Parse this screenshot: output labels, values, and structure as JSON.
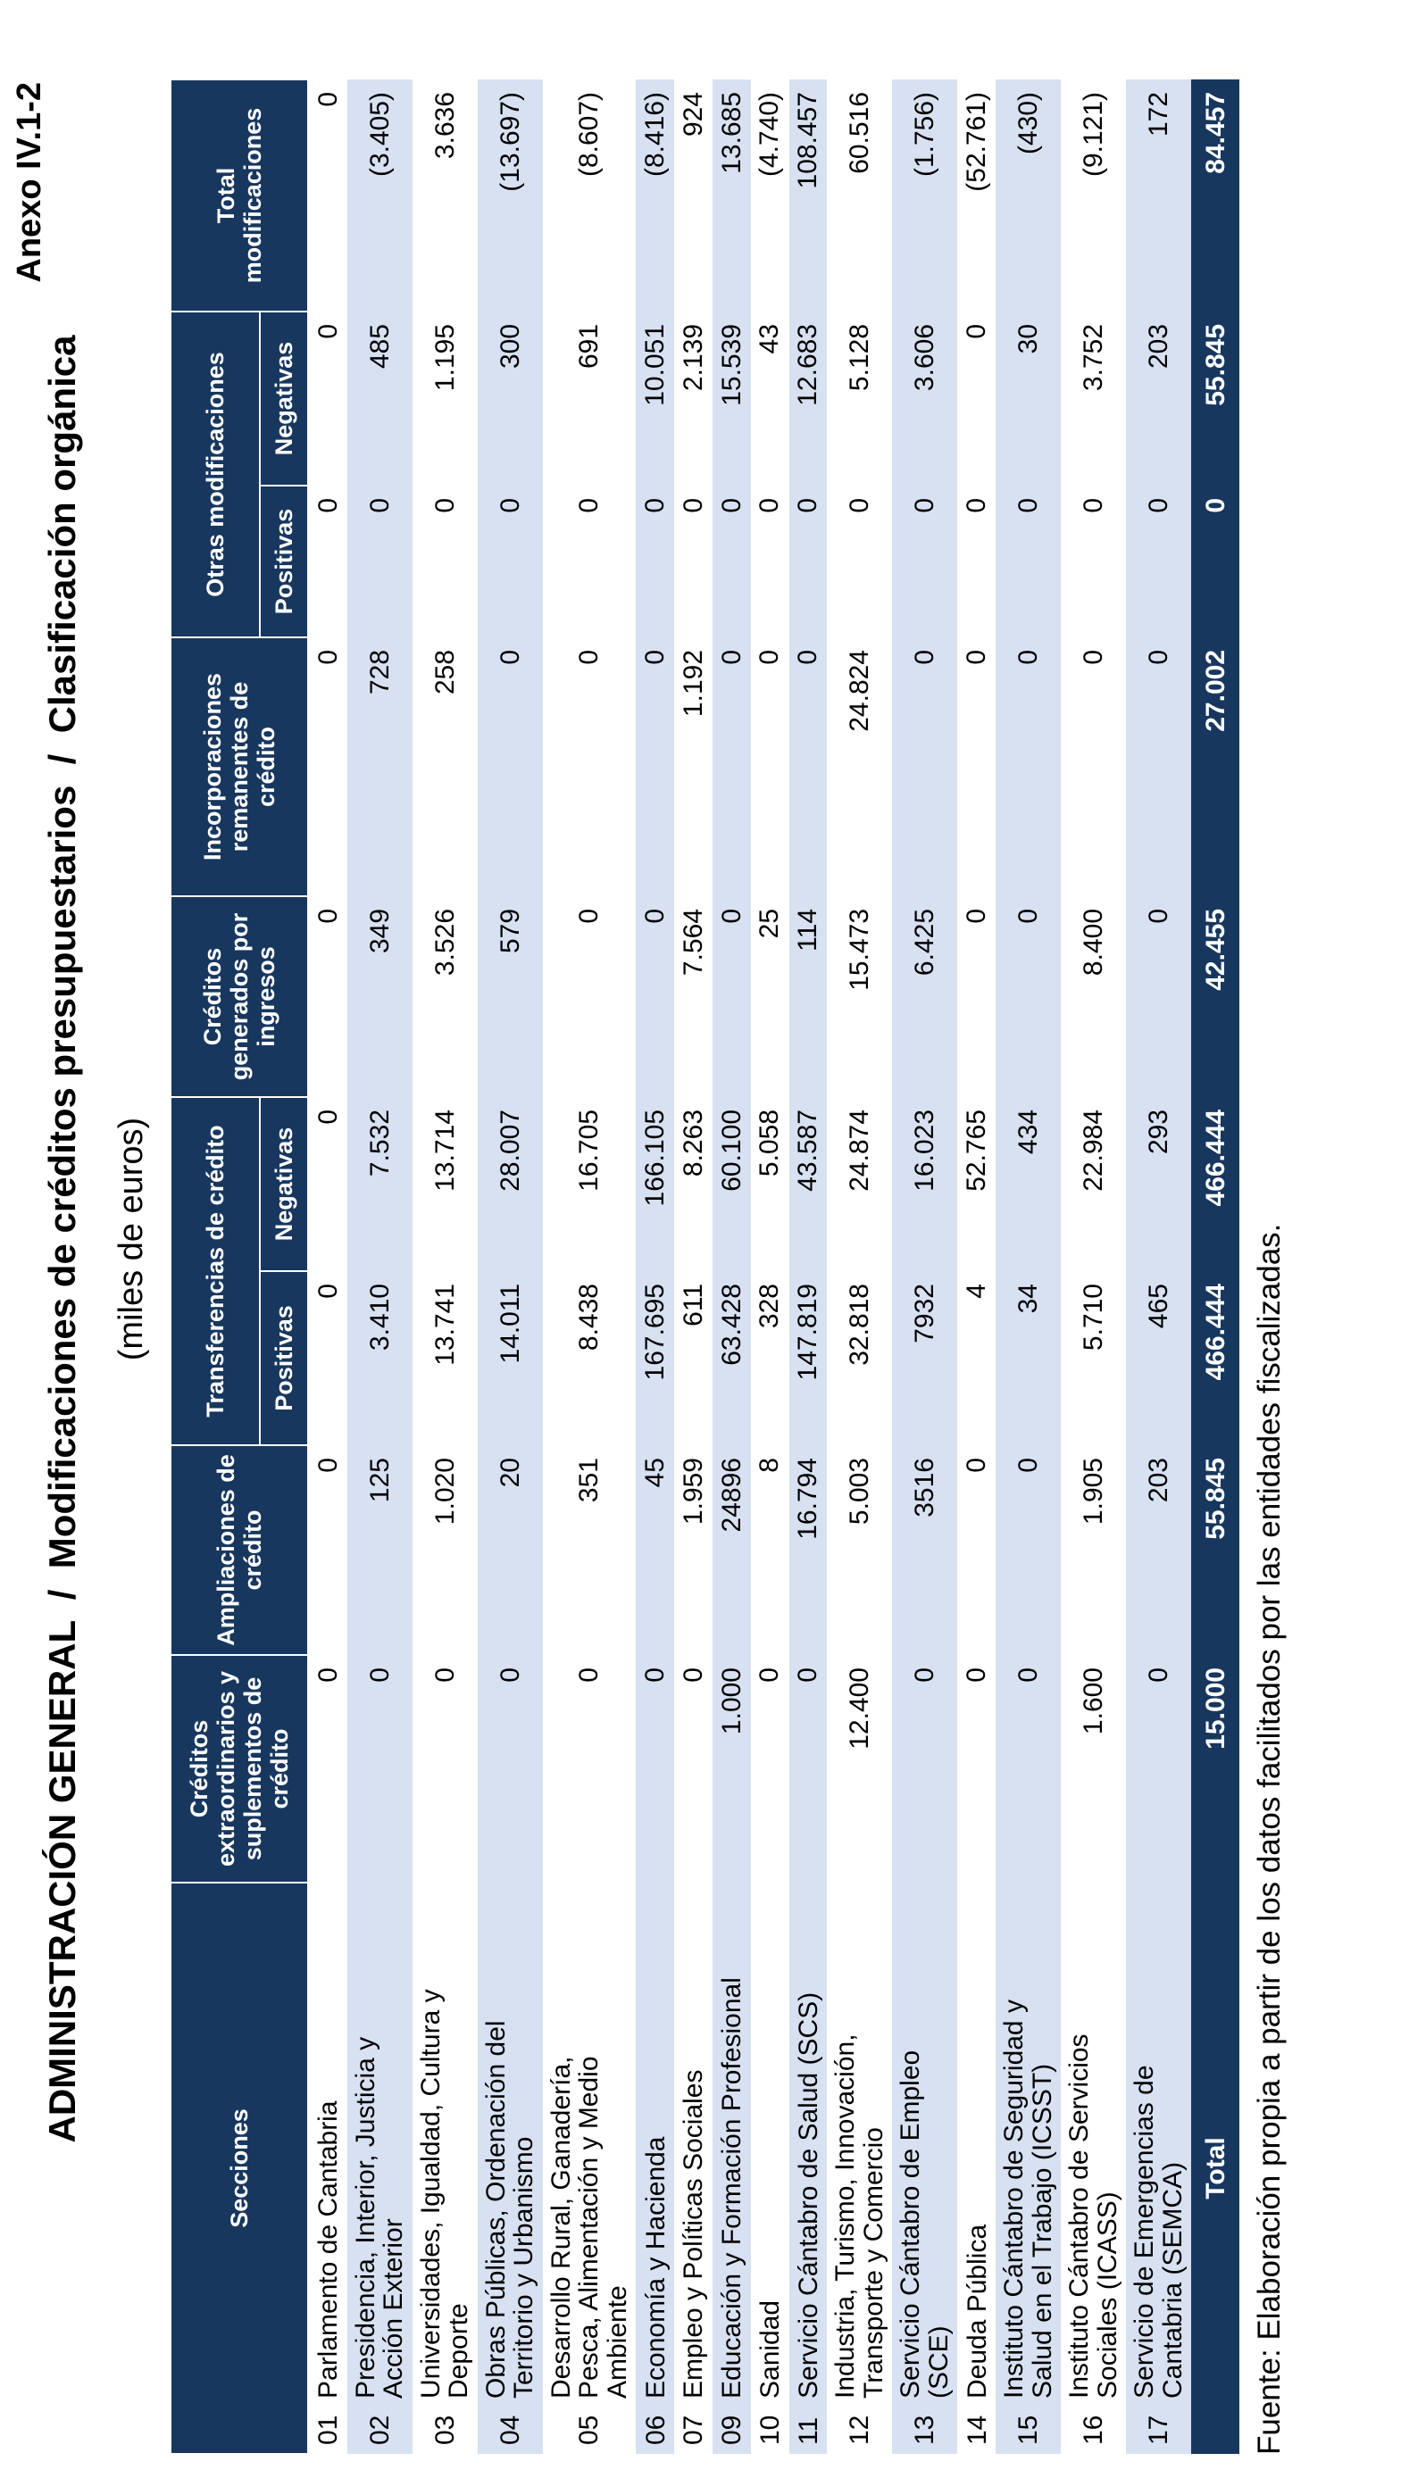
{
  "page": {
    "annex": "Anexo IV.1-2",
    "title": "ADMINISTRACIÓN GENERAL  /  Modificaciones de créditos presupuestarios  /  Clasificación orgánica",
    "subtitle": "(miles de euros)",
    "source_note": "Fuente: Elaboración propia a partir de los datos facilitados por las entidades fiscalizadas."
  },
  "colors": {
    "header_navy": "#17375E",
    "row_stripe": "#D8E1F1",
    "text": "#000000"
  },
  "table": {
    "col_headers": {
      "secciones": "Secciones",
      "extraordinarios": "Créditos extraordinarios y suplementos de crédito",
      "ampliaciones": "Ampliaciones de crédito",
      "transferencias": "Transferencias de crédito",
      "generados": "Créditos generados por ingresos",
      "incorporaciones": "Incorporaciones remanentes de crédito",
      "otras": "Otras modificaciones",
      "total": "Total modificaciones",
      "sub_positivas": "Positivas",
      "sub_negativas": "Negativas"
    },
    "rows": [
      {
        "num": "01",
        "name": "Parlamento de Cantabria",
        "shaded": false,
        "values": [
          "0",
          "0",
          "0",
          "0",
          "0",
          "0",
          "0",
          "0",
          "0"
        ]
      },
      {
        "num": "02",
        "name": "Presidencia, Interior, Justicia y Acción Exterior",
        "shaded": true,
        "values": [
          "0",
          "125",
          "3.410",
          "7.532",
          "349",
          "728",
          "0",
          "485",
          "(3.405)"
        ]
      },
      {
        "num": "03",
        "name": "Universidades, Igualdad, Cultura y Deporte",
        "shaded": false,
        "values": [
          "0",
          "1.020",
          "13.741",
          "13.714",
          "3.526",
          "258",
          "0",
          "1.195",
          "3.636"
        ]
      },
      {
        "num": "04",
        "name": "Obras Públicas, Ordenación del Territorio y Urbanismo",
        "shaded": true,
        "values": [
          "0",
          "20",
          "14.011",
          "28.007",
          "579",
          "0",
          "0",
          "300",
          "(13.697)"
        ]
      },
      {
        "num": "05",
        "name": "Desarrollo Rural, Ganadería, Pesca, Alimentación y Medio Ambiente",
        "shaded": false,
        "values": [
          "0",
          "351",
          "8.438",
          "16.705",
          "0",
          "0",
          "0",
          "691",
          "(8.607)"
        ]
      },
      {
        "num": "06",
        "name": "Economía y Hacienda",
        "shaded": true,
        "values": [
          "0",
          "45",
          "167.695",
          "166.105",
          "0",
          "0",
          "0",
          "10.051",
          "(8.416)"
        ]
      },
      {
        "num": "07",
        "name": "Empleo y Políticas Sociales",
        "shaded": false,
        "values": [
          "0",
          "1.959",
          "611",
          "8.263",
          "7.564",
          "1.192",
          "0",
          "2.139",
          "924"
        ]
      },
      {
        "num": "09",
        "name": "Educación y Formación Profesional",
        "shaded": true,
        "values": [
          "1.000",
          "24896",
          "63.428",
          "60.100",
          "0",
          "0",
          "0",
          "15.539",
          "13.685"
        ]
      },
      {
        "num": "10",
        "name": "Sanidad",
        "shaded": false,
        "values": [
          "0",
          "8",
          "328",
          "5.058",
          "25",
          "0",
          "0",
          "43",
          "(4.740)"
        ]
      },
      {
        "num": "11",
        "name": "Servicio Cántabro de Salud (SCS)",
        "shaded": true,
        "values": [
          "0",
          "16.794",
          "147.819",
          "43.587",
          "114",
          "0",
          "0",
          "12.683",
          "108.457"
        ]
      },
      {
        "num": "12",
        "name": "Industria, Turismo, Innovación, Transporte y Comercio",
        "shaded": false,
        "values": [
          "12.400",
          "5.003",
          "32.818",
          "24.874",
          "15.473",
          "24.824",
          "0",
          "5.128",
          "60.516"
        ]
      },
      {
        "num": "13",
        "name": "Servicio Cántabro de Empleo (SCE)",
        "shaded": true,
        "values": [
          "0",
          "3516",
          "7932",
          "16.023",
          "6.425",
          "0",
          "0",
          "3.606",
          "(1.756)"
        ]
      },
      {
        "num": "14",
        "name": "Deuda Pública",
        "shaded": false,
        "values": [
          "0",
          "0",
          "4",
          "52.765",
          "0",
          "0",
          "0",
          "0",
          "(52.761)"
        ]
      },
      {
        "num": "15",
        "name": "Instituto Cántabro de Seguridad y Salud en el Trabajo (ICSST)",
        "shaded": true,
        "values": [
          "0",
          "0",
          "34",
          "434",
          "0",
          "0",
          "0",
          "30",
          "(430)"
        ]
      },
      {
        "num": "16",
        "name": "Instituto Cántabro de Servicios Sociales (ICASS)",
        "shaded": false,
        "values": [
          "1.600",
          "1.905",
          "5.710",
          "22.984",
          "8.400",
          "0",
          "0",
          "3.752",
          "(9.121)"
        ]
      },
      {
        "num": "17",
        "name": "Servicio de Emergencias de Cantabria (SEMCA)",
        "shaded": true,
        "values": [
          "0",
          "203",
          "465",
          "293",
          "0",
          "0",
          "0",
          "203",
          "172"
        ]
      }
    ],
    "total_row": {
      "label": "Total",
      "values": [
        "15.000",
        "55.845",
        "466.444",
        "466.444",
        "42.455",
        "27.002",
        "0",
        "55.845",
        "84.457"
      ]
    }
  }
}
